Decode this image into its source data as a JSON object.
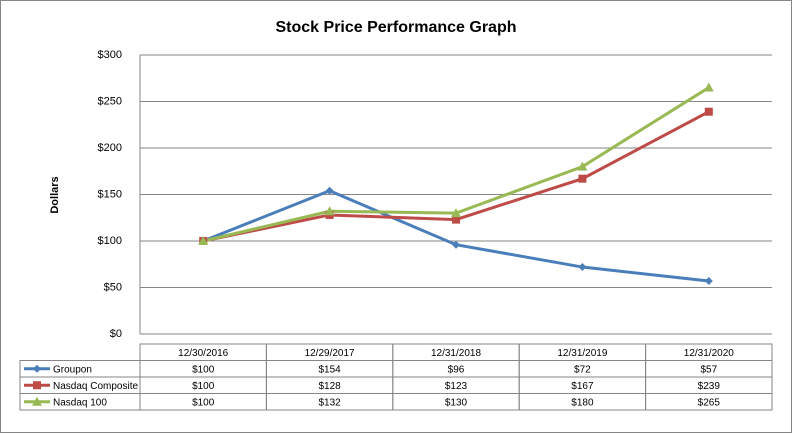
{
  "chart_data": {
    "type": "line",
    "title": "Stock Price Performance Graph",
    "y_label": "Dollars",
    "categories": [
      "12/30/2016",
      "12/29/2017",
      "12/31/2018",
      "12/31/2019",
      "12/31/2020"
    ],
    "series": [
      {
        "name": "Groupon",
        "color": "#4a7ebb",
        "marker": "diamond",
        "values": [
          100,
          154,
          96,
          72,
          57
        ],
        "value_labels": [
          "$100",
          "$154",
          "$96",
          "$72",
          "$57"
        ]
      },
      {
        "name": "Nasdaq Composite",
        "color": "#be4b48",
        "marker": "square",
        "values": [
          100,
          128,
          123,
          167,
          239
        ],
        "value_labels": [
          "$100",
          "$128",
          "$123",
          "$167",
          "$239"
        ]
      },
      {
        "name": "Nasdaq 100",
        "color": "#98b954",
        "marker": "triangle",
        "values": [
          100,
          132,
          130,
          180,
          265
        ],
        "value_labels": [
          "$100",
          "$132",
          "$130",
          "$180",
          "$265"
        ]
      }
    ],
    "ylim": [
      0,
      300
    ],
    "yticks": [
      {
        "value": 0,
        "label": "$0"
      },
      {
        "value": 50,
        "label": "$50"
      },
      {
        "value": 100,
        "label": "$100"
      },
      {
        "value": 150,
        "label": "$150"
      },
      {
        "value": 200,
        "label": "$200"
      },
      {
        "value": 250,
        "label": "$250"
      },
      {
        "value": 300,
        "label": "$300"
      }
    ],
    "grid": true
  }
}
